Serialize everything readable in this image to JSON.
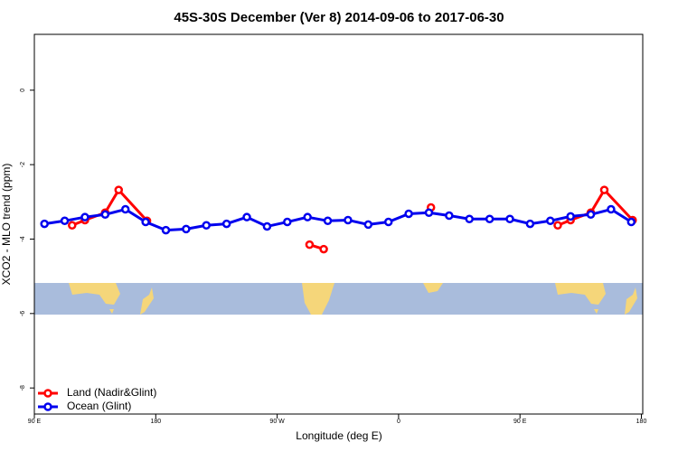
{
  "chart_data": {
    "type": "line",
    "title": "45S-30S December (Ver 8)   2014-09-06 to 2017-06-30",
    "x_label": "Longitude (deg E)",
    "y_label": "XCO2 - MLO trend (ppm)",
    "xlim": [
      90,
      541
    ],
    "ylim": [
      -8.7,
      1.5
    ],
    "xticks": [
      {
        "value": 90,
        "label": "90 E"
      },
      180,
      {
        "value": 270,
        "label": "90 W"
      },
      {
        "value": 360,
        "label": "0"
      },
      {
        "value": 450,
        "label": "90 E"
      },
      {
        "value": 540,
        "label": "180"
      }
    ],
    "yticks": [
      0,
      -2,
      -4,
      -6,
      -8
    ],
    "legend": "bottom-left",
    "series": [
      {
        "name": "Land (Nadir&Glint)",
        "color": "#ff0000",
        "x": [
          118,
          127.5,
          142.5,
          152.5,
          173.5,
          null,
          294,
          304.5,
          null,
          384,
          null,
          478,
          487.5,
          502.5,
          512.5,
          533.5
        ],
        "values": [
          -3.63,
          -3.49,
          -3.29,
          -2.68,
          -3.51,
          null,
          -4.15,
          -4.27,
          null,
          -3.15,
          null,
          -3.63,
          -3.49,
          -3.29,
          -2.68,
          -3.49
        ]
      },
      {
        "name": "Ocean (Glint)",
        "color": "#0000ee",
        "x": [
          97.5,
          112.5,
          127.5,
          142.5,
          157.5,
          172.5,
          187.5,
          202.5,
          217.5,
          232.5,
          247.5,
          262.5,
          277.5,
          292.5,
          307.5,
          322.5,
          337.5,
          352.5,
          367.5,
          382.5,
          397.5,
          412.5,
          427.5,
          442.5,
          457.5,
          472.5,
          487.5,
          502.5,
          517.5,
          532.5
        ],
        "values": [
          -3.59,
          -3.51,
          -3.41,
          -3.34,
          -3.2,
          -3.54,
          -3.76,
          -3.73,
          -3.63,
          -3.59,
          -3.41,
          -3.66,
          -3.54,
          -3.41,
          -3.51,
          -3.49,
          -3.61,
          -3.54,
          -3.32,
          -3.29,
          -3.37,
          -3.46,
          -3.46,
          -3.46,
          -3.59,
          -3.51,
          -3.39,
          -3.34,
          -3.2,
          -3.54
        ]
      }
    ]
  }
}
